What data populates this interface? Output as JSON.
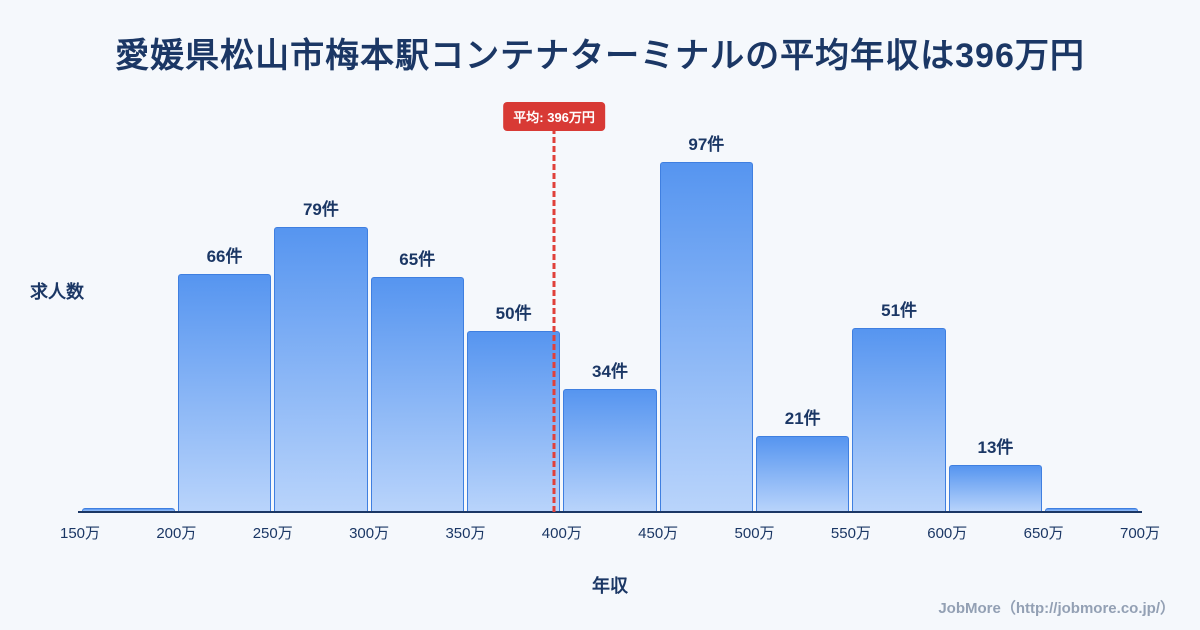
{
  "title": "愛媛県松山市梅本駅コンテナターミナルの平均年収は396万円",
  "chart_data": {
    "type": "bar",
    "title": "愛媛県松山市梅本駅コンテナターミナルの平均年収は396万円",
    "xlabel": "年収",
    "ylabel": "求人数",
    "x_ticks": [
      "150万",
      "200万",
      "250万",
      "300万",
      "350万",
      "400万",
      "450万",
      "500万",
      "550万",
      "600万",
      "650万",
      "700万"
    ],
    "x_range": [
      150,
      700
    ],
    "bin_width": 50,
    "ylim": [
      0,
      103
    ],
    "grid": false,
    "legend": "none",
    "bins": [
      {
        "range": [
          150,
          200
        ],
        "value": 1,
        "label": ""
      },
      {
        "range": [
          200,
          250
        ],
        "value": 66,
        "label": "66件"
      },
      {
        "range": [
          250,
          300
        ],
        "value": 79,
        "label": "79件"
      },
      {
        "range": [
          300,
          350
        ],
        "value": 65,
        "label": "65件"
      },
      {
        "range": [
          350,
          400
        ],
        "value": 50,
        "label": "50件"
      },
      {
        "range": [
          400,
          450
        ],
        "value": 34,
        "label": "34件"
      },
      {
        "range": [
          450,
          500
        ],
        "value": 97,
        "label": "97件"
      },
      {
        "range": [
          500,
          550
        ],
        "value": 21,
        "label": "21件"
      },
      {
        "range": [
          550,
          600
        ],
        "value": 51,
        "label": "51件"
      },
      {
        "range": [
          600,
          650
        ],
        "value": 13,
        "label": "13件"
      },
      {
        "range": [
          650,
          700
        ],
        "value": 1,
        "label": ""
      }
    ],
    "average": {
      "value": 396,
      "label": "平均: 396万円"
    }
  },
  "footer": {
    "credit": "JobMore（http://jobmore.co.jp/）"
  },
  "colors": {
    "background": "#f5f8fc",
    "title_text": "#1b3765",
    "axis_text": "#1b3765",
    "bar_top": "#5695f0",
    "bar_bottom": "#b9d4fb",
    "bar_border": "#3f7fe0",
    "avg_line": "#e0403a",
    "avg_badge_bg": "#d83a35",
    "footer_text": "#93a0b4"
  }
}
